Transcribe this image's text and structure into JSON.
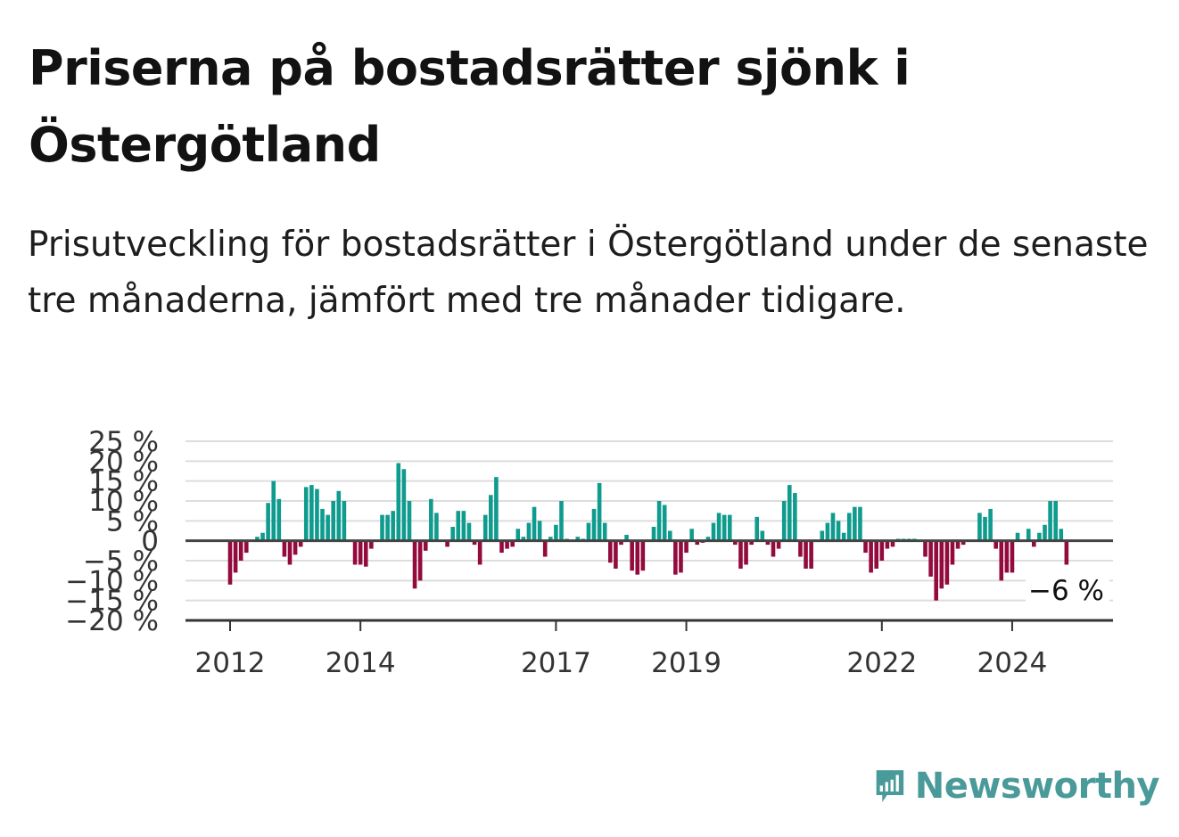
{
  "title": "Priserna på bostadsrätter sjönk i Östergötland",
  "subtitle": "Prisutveckling för bostadsrätter i Östergötland under de senaste tre månaderna, jämfört med tre månader tidigare.",
  "brand": {
    "name": "Newsworthy",
    "icon": "newsworthy-logo-icon"
  },
  "colors": {
    "positive": "#0f9b8e",
    "negative": "#930a3d",
    "zero_line": "#444444",
    "grid": "#dddddd",
    "brand": "#4a9a9a"
  },
  "chart_data": {
    "type": "bar",
    "ylim": [
      -20,
      25
    ],
    "yticks": [
      {
        "value": 25,
        "label": "25 %"
      },
      {
        "value": 20,
        "label": "20 %"
      },
      {
        "value": 15,
        "label": "15 %"
      },
      {
        "value": 10,
        "label": "10 %"
      },
      {
        "value": 5,
        "label": "5 %"
      },
      {
        "value": 0,
        "label": "0"
      },
      {
        "value": -5,
        "label": "−5 %"
      },
      {
        "value": -10,
        "label": "−10 %"
      },
      {
        "value": -15,
        "label": "−15 %"
      },
      {
        "value": -20,
        "label": "−20 %"
      }
    ],
    "xticks": [
      {
        "index": 0,
        "label": "2012"
      },
      {
        "index": 24,
        "label": "2014"
      },
      {
        "index": 60,
        "label": "2017"
      },
      {
        "index": 84,
        "label": "2019"
      },
      {
        "index": 120,
        "label": "2022"
      },
      {
        "index": 144,
        "label": "2024"
      }
    ],
    "values": [
      -11,
      -8,
      -5,
      -3,
      0,
      1,
      2,
      9.5,
      15,
      10.5,
      -4,
      -6,
      -3.5,
      -1.5,
      13.5,
      14,
      13,
      8,
      6.5,
      10,
      12.5,
      10,
      0,
      -6,
      -6,
      -6.5,
      -2,
      0,
      6.5,
      6.5,
      7.5,
      19.5,
      18,
      10,
      -12,
      -10,
      -2.5,
      10.5,
      7,
      0,
      -1.5,
      3.5,
      7.5,
      7.5,
      4.5,
      -1,
      -6,
      6.5,
      11.5,
      16,
      -3,
      -2,
      -1.5,
      3,
      1,
      4.5,
      8.5,
      5,
      -4,
      1,
      4,
      10,
      0.5,
      0,
      1,
      0.5,
      4.5,
      8,
      14.5,
      4.5,
      -5.5,
      -7,
      -1,
      1.5,
      -7.5,
      -8.5,
      -7.5,
      0,
      3.5,
      10,
      9,
      2.5,
      -8.5,
      -8,
      -3,
      3,
      -1,
      -0.5,
      1,
      4.5,
      7,
      6.5,
      6.5,
      -1,
      -7,
      -6,
      -1,
      6,
      2.5,
      -1,
      -4,
      -2,
      10,
      14,
      12,
      -4,
      -7,
      -7,
      0,
      2.5,
      4.5,
      7,
      5,
      2,
      7,
      8.5,
      8.5,
      -3,
      -8,
      -7,
      -5,
      -2,
      -1.5,
      0.5,
      0.5,
      0.5,
      0.5,
      0,
      -4,
      -9,
      -15,
      -12,
      -11,
      -6,
      -2,
      -1,
      0,
      0,
      7,
      6,
      8,
      -2,
      -10,
      -8,
      -8,
      2,
      0,
      3,
      -1.5,
      2,
      4,
      10,
      10,
      3,
      -6
    ],
    "end_label": "−6 %"
  }
}
